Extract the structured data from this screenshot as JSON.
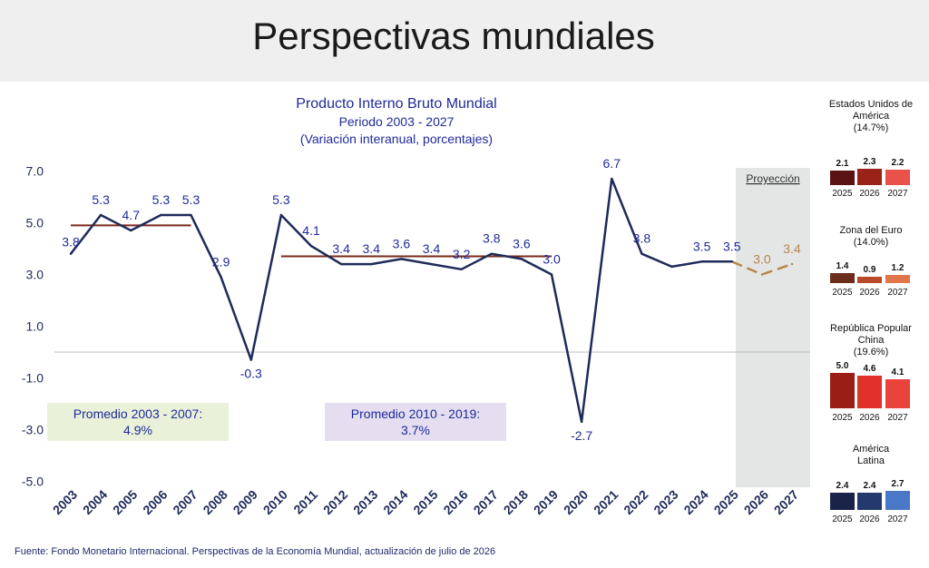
{
  "page": {
    "title": "Perspectivas mundiales",
    "source": "Fuente: Fondo Monetario Internacional. Perspectivas de la Economía Mundial, actualización de julio de 2026"
  },
  "colors": {
    "main_line": "#1f2a5a",
    "projection_line": "#b8864a",
    "average_line": "#7a2a1a",
    "projection_band": "#e4e6e6",
    "label_blue": "#1f2a9a",
    "avg_box_1": "#e9f1d9",
    "avg_box_2": "#e5def0"
  },
  "chart_data": [
    {
      "type": "line",
      "title": "Producto Interno Bruto Mundial",
      "subtitle": "Periodo 2003 - 2027",
      "subtitle2": "(Variación interanual, porcentajes)",
      "x": [
        "2003",
        "2004",
        "2005",
        "2006",
        "2007",
        "2008",
        "2009",
        "2010",
        "2011",
        "2012",
        "2013",
        "2014",
        "2015",
        "2016",
        "2017",
        "2018",
        "2019",
        "2020",
        "2021",
        "2022",
        "2023",
        "2024",
        "2025",
        "2026",
        "2027"
      ],
      "series": [
        {
          "values": [
            3.8,
            5.3,
            4.7,
            5.3,
            5.3,
            2.9,
            -0.3,
            5.3,
            4.1,
            3.4,
            3.4,
            3.6,
            3.4,
            3.2,
            3.8,
            3.6,
            3.0,
            -2.7,
            6.7,
            3.8,
            3.3,
            3.5,
            3.5,
            3.0,
            3.4
          ],
          "labels": [
            "3.8",
            "5.3",
            "4.7",
            "5.3",
            "5.3",
            "2.9",
            "-0.3",
            "5.3",
            "4.1",
            "3.4",
            "3.4",
            "3.6",
            "3.4",
            "3.2",
            "3.8",
            "3.6",
            "3.0",
            "-2.7",
            "6.7",
            "3.8",
            "",
            "3.5",
            "3.5",
            "3.0",
            "3.4"
          ],
          "projection_from": "2025"
        }
      ],
      "y_ticks": [
        "7.0",
        "5.0",
        "3.0",
        "1.0",
        "-1.0",
        "-3.0",
        "-5.0"
      ],
      "ylim": [
        -5,
        7
      ],
      "projection_label": "Proyección",
      "averages": [
        {
          "label": "Promedio 2003 - 2007:",
          "value_label": "4.9%",
          "value": 4.9,
          "from": "2003",
          "to": "2007"
        },
        {
          "label": "Promedio 2010 - 2019:",
          "value_label": "3.7%",
          "value": 3.7,
          "from": "2010",
          "to": "2019"
        }
      ]
    },
    {
      "type": "bar",
      "title_lines": [
        "Estados Unidos de",
        "América",
        "(14.7%)"
      ],
      "categories": [
        "2025",
        "2026",
        "2027"
      ],
      "values": [
        2.1,
        2.3,
        2.2
      ],
      "labels": [
        "2.1",
        "2.3",
        "2.2"
      ],
      "colors": [
        "#5a1212",
        "#9b2218",
        "#e8524a"
      ]
    },
    {
      "type": "bar",
      "title_lines": [
        "Zona del Euro",
        "(14.0%)"
      ],
      "categories": [
        "2025",
        "2026",
        "2027"
      ],
      "values": [
        1.4,
        0.9,
        1.2
      ],
      "labels": [
        "1.4",
        "0.9",
        "1.2"
      ],
      "colors": [
        "#6a2e1a",
        "#b84a2a",
        "#e0764a"
      ]
    },
    {
      "type": "bar",
      "title_lines": [
        "República Popular",
        "China",
        "(19.6%)"
      ],
      "categories": [
        "2025",
        "2026",
        "2027"
      ],
      "values": [
        5.0,
        4.6,
        4.1
      ],
      "labels": [
        "5.0",
        "4.6",
        "4.1"
      ],
      "colors": [
        "#9b1e16",
        "#e0302a",
        "#e8443c"
      ]
    },
    {
      "type": "bar",
      "title_lines": [
        "América",
        "Latina"
      ],
      "categories": [
        "2025",
        "2026",
        "2027"
      ],
      "values": [
        2.4,
        2.4,
        2.7
      ],
      "labels": [
        "2.4",
        "2.4",
        "2.7"
      ],
      "colors": [
        "#1a2448",
        "#243a6e",
        "#4a78c8"
      ]
    }
  ]
}
